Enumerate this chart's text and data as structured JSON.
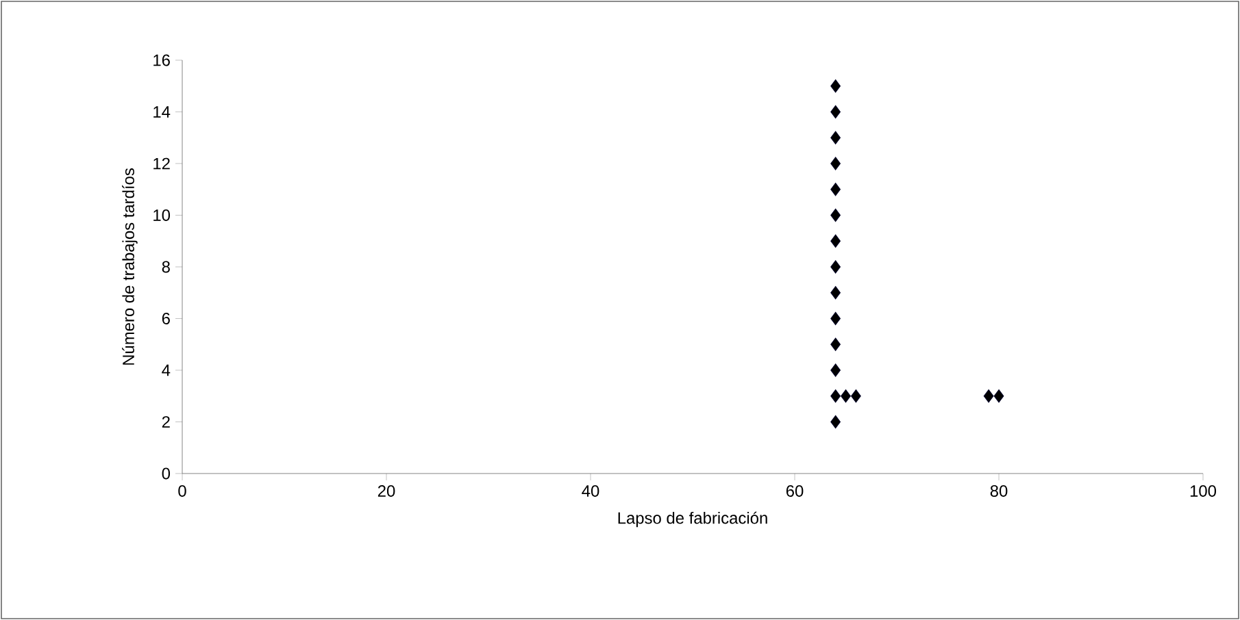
{
  "chart_data": {
    "type": "scatter",
    "xlabel": "Lapso de fabricación",
    "ylabel": "Número de trabajos tardíos",
    "x": [
      64,
      64,
      64,
      64,
      64,
      64,
      64,
      64,
      64,
      64,
      64,
      64,
      64,
      64,
      65,
      66,
      79,
      80
    ],
    "values": [
      2,
      3,
      4,
      5,
      6,
      7,
      8,
      9,
      10,
      11,
      12,
      13,
      14,
      15,
      3,
      3,
      3,
      3
    ],
    "color": "#000022",
    "marker": "diamond",
    "xlim": [
      0,
      100
    ],
    "xticks": [
      0,
      20,
      40,
      60,
      80,
      100
    ],
    "ylim": [
      0,
      16
    ],
    "yticks": [
      0,
      2,
      4,
      6,
      8,
      10,
      12,
      14,
      16
    ]
  }
}
